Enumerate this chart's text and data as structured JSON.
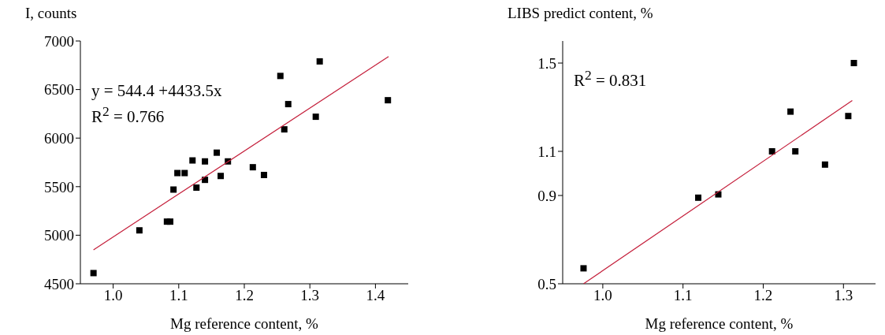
{
  "chart_data": [
    {
      "type": "scatter",
      "ylabel": "I, counts",
      "xlabel": "Mg reference content, %",
      "xlim": [
        0.95,
        1.45
      ],
      "xticks": [
        {
          "value": 1,
          "label": "1.0"
        },
        1.1,
        1.2,
        1.3,
        1.4
      ],
      "ylim": [
        4500,
        7000
      ],
      "yticks": [
        4500,
        5000,
        5500,
        6000,
        6500,
        7000
      ],
      "annotations": [
        "y = 544.4 +4433.5x",
        "R$^{2}$ = 0.766"
      ],
      "series": [
        {
          "color": "#000000",
          "marker": "square",
          "x": [
            0.97,
            1.04,
            1.082,
            1.087,
            1.092,
            1.098,
            1.109,
            1.121,
            1.127,
            1.14,
            1.14,
            1.158,
            1.164,
            1.175,
            1.213,
            1.23,
            1.255,
            1.261,
            1.267,
            1.309,
            1.315,
            1.419
          ],
          "values": [
            4610,
            5050,
            5140,
            5140,
            5470,
            5640,
            5640,
            5770,
            5490,
            5760,
            5570,
            5850,
            5610,
            5760,
            5700,
            5620,
            6640,
            6090,
            6350,
            6220,
            6790,
            6390
          ]
        },
        {
          "type": "line",
          "marker": "none",
          "color": "#c41e3a",
          "x": [
            0.97,
            1.42
          ],
          "values": [
            4850,
            6840
          ]
        }
      ]
    },
    {
      "type": "scatter",
      "ylabel": "LIBS predict content, %",
      "xlabel": "Mg reference content, %",
      "xlim": [
        0.95,
        1.34
      ],
      "xticks": [
        {
          "value": 1,
          "label": "1.0"
        },
        1.1,
        1.2,
        1.3
      ],
      "ylim": [
        0.5,
        1.6
      ],
      "yticks": [
        0.5,
        0.9,
        1.1,
        1.5
      ],
      "annotations": [
        "R$^{2}$ = 0.831"
      ],
      "series": [
        {
          "color": "#000000",
          "marker": "square",
          "x": [
            0.976,
            1.119,
            1.144,
            1.211,
            1.234,
            1.24,
            1.277,
            1.306,
            1.313
          ],
          "values": [
            0.57,
            0.89,
            0.905,
            1.1,
            1.28,
            1.1,
            1.04,
            1.26,
            1.5
          ]
        },
        {
          "type": "line",
          "marker": "none",
          "color": "#c41e3a",
          "x": [
            0.976,
            1.311
          ],
          "values": [
            0.5,
            1.33
          ]
        }
      ]
    }
  ]
}
